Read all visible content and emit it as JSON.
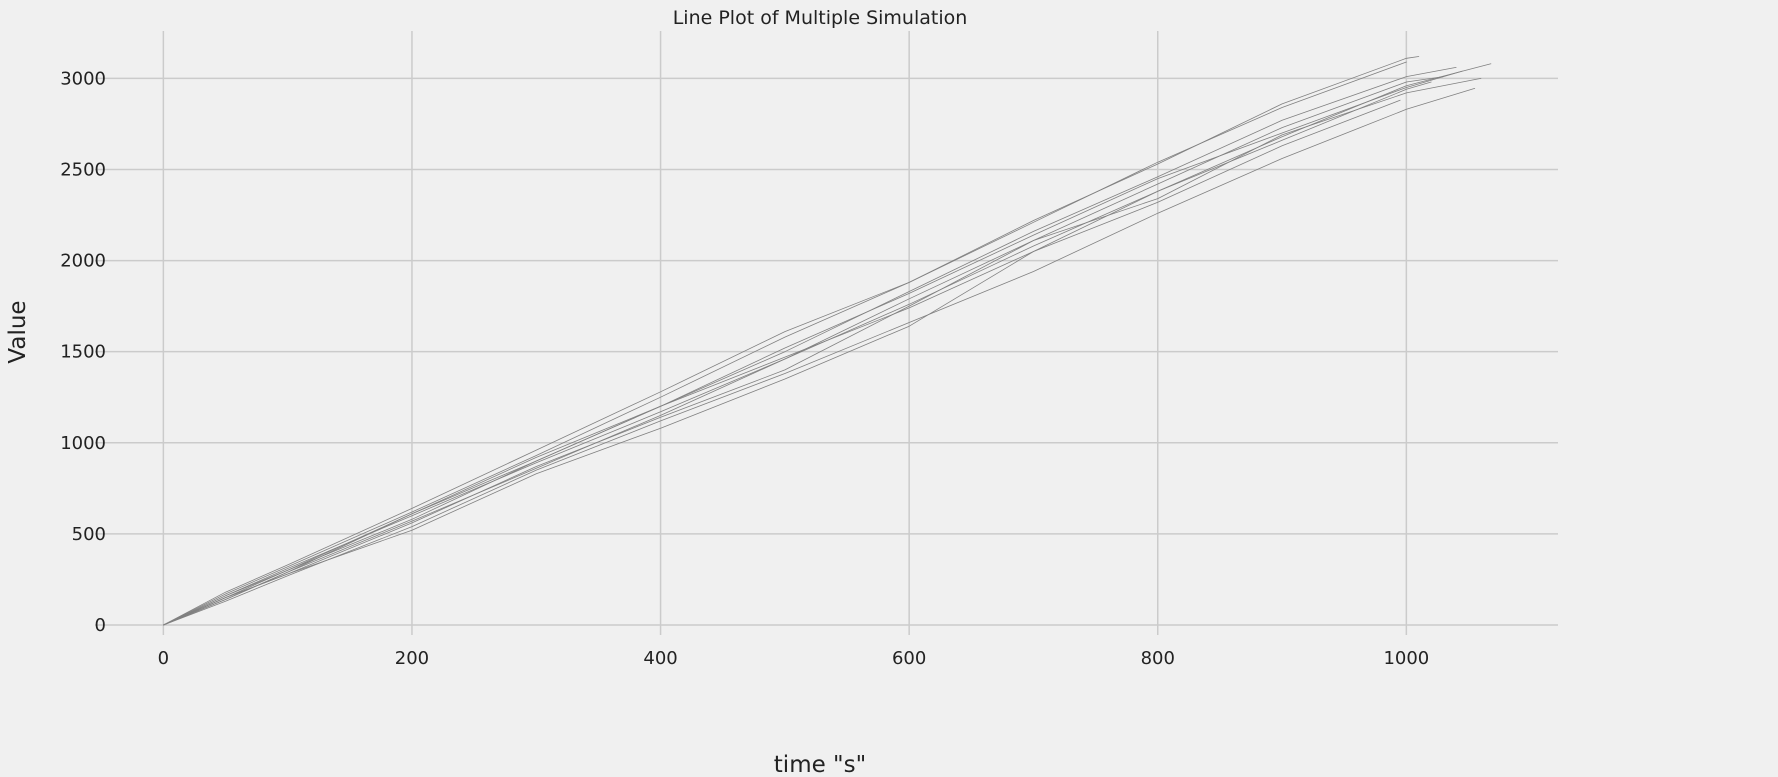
{
  "chart_data": {
    "type": "line",
    "title": "Line Plot of Multiple Simulation",
    "xlabel": "time \"s\"",
    "ylabel": "Value",
    "xlim": [
      -55,
      1122
    ],
    "ylim": [
      -55,
      3260
    ],
    "xticks": [
      0,
      200,
      400,
      600,
      800,
      1000
    ],
    "yticks": [
      0,
      500,
      1000,
      1500,
      2000,
      2500,
      3000
    ],
    "grid": true,
    "line_color": "#808080",
    "background_color": "#f0f0f0",
    "grid_color": "#cbcbcb",
    "series": [
      {
        "x": [
          0,
          50,
          100,
          200,
          300,
          400,
          500,
          600,
          700,
          800,
          900,
          1000,
          1010
        ],
        "values": [
          0,
          170,
          320,
          620,
          930,
          1250,
          1580,
          1880,
          2220,
          2530,
          2860,
          3110,
          3120
        ]
      },
      {
        "x": [
          0,
          50,
          100,
          200,
          300,
          400,
          500,
          600,
          700,
          800,
          900,
          1000,
          1068
        ],
        "values": [
          0,
          160,
          310,
          600,
          890,
          1170,
          1460,
          1760,
          2080,
          2380,
          2680,
          2960,
          3080
        ]
      },
      {
        "x": [
          0,
          50,
          100,
          200,
          300,
          400,
          500,
          600,
          700,
          800,
          900,
          1000,
          1055
        ],
        "values": [
          0,
          130,
          270,
          540,
          850,
          1120,
          1380,
          1660,
          1940,
          2260,
          2560,
          2830,
          2945
        ]
      },
      {
        "x": [
          0,
          50,
          100,
          200,
          300,
          400,
          500,
          600,
          700,
          800,
          900,
          1000,
          1040
        ],
        "values": [
          0,
          150,
          300,
          610,
          920,
          1200,
          1500,
          1830,
          2160,
          2460,
          2770,
          3010,
          3060
        ]
      },
      {
        "x": [
          0,
          50,
          100,
          200,
          300,
          400,
          500,
          600,
          700,
          800,
          900,
          1000,
          1030
        ],
        "values": [
          0,
          140,
          290,
          570,
          860,
          1150,
          1460,
          1790,
          2110,
          2420,
          2730,
          2980,
          3010
        ]
      },
      {
        "x": [
          0,
          50,
          100,
          200,
          300,
          400,
          500,
          600,
          700,
          800,
          900,
          1000
        ],
        "values": [
          0,
          180,
          330,
          640,
          960,
          1280,
          1610,
          1880,
          2210,
          2540,
          2840,
          3090
        ]
      },
      {
        "x": [
          0,
          50,
          100,
          200,
          300,
          400,
          500,
          600,
          700,
          800,
          900,
          995
        ],
        "values": [
          0,
          150,
          280,
          520,
          830,
          1080,
          1350,
          1640,
          2050,
          2320,
          2630,
          2880
        ]
      },
      {
        "x": [
          0,
          50,
          100,
          200,
          300,
          400,
          500,
          600,
          700,
          800,
          900,
          1000,
          1045
        ],
        "values": [
          0,
          160,
          300,
          580,
          900,
          1200,
          1520,
          1820,
          2140,
          2450,
          2700,
          2950,
          3040
        ]
      },
      {
        "x": [
          0,
          50,
          100,
          200,
          300,
          400,
          500,
          600,
          700,
          800,
          900,
          1000,
          1020
        ],
        "values": [
          0,
          140,
          290,
          610,
          900,
          1200,
          1470,
          1740,
          2050,
          2380,
          2660,
          2940,
          2980
        ]
      },
      {
        "x": [
          0,
          50,
          100,
          200,
          300,
          400,
          500,
          600,
          700,
          800,
          900,
          1000,
          1060
        ],
        "values": [
          0,
          150,
          280,
          560,
          870,
          1140,
          1400,
          1750,
          2110,
          2340,
          2690,
          2920,
          3000
        ]
      }
    ]
  }
}
